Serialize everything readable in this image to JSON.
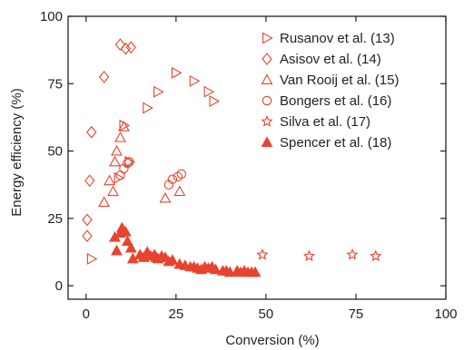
{
  "chart_data": {
    "type": "scatter",
    "xlabel": "Conversion (%)",
    "ylabel": "Energy efficiency (%)",
    "xlim": [
      -5,
      100
    ],
    "ylim": [
      -5,
      100
    ],
    "x_ticks": [
      0,
      25,
      50,
      75,
      100
    ],
    "y_ticks": [
      0,
      25,
      50,
      75,
      100
    ],
    "x_tick_labels": [
      "0",
      "25",
      "50",
      "75",
      "100"
    ],
    "y_tick_labels": [
      "0",
      "25",
      "50",
      "75",
      "100"
    ],
    "grid": false,
    "legend_position": "top-right",
    "color": "#e8432e",
    "series": [
      {
        "name": "Rusanov et al. (13)",
        "marker": "triangle-right",
        "filled": false,
        "points": [
          [
            1.5,
            10
          ],
          [
            9,
            40
          ],
          [
            12,
            46
          ],
          [
            17,
            66
          ],
          [
            20,
            72
          ],
          [
            25,
            79
          ],
          [
            30,
            76
          ],
          [
            34,
            72
          ],
          [
            35.5,
            68.5
          ],
          [
            10.5,
            59.5
          ]
        ]
      },
      {
        "name": "Asisov et al. (14)",
        "marker": "diamond",
        "filled": false,
        "points": [
          [
            0.3,
            24.5
          ],
          [
            0.3,
            18.5
          ],
          [
            1,
            39
          ],
          [
            1.5,
            57
          ],
          [
            5,
            77.5
          ],
          [
            9.5,
            89.5
          ],
          [
            11,
            88
          ],
          [
            12.5,
            88.5
          ]
        ]
      },
      {
        "name": "Van Rooij et al. (15)",
        "marker": "triangle-up",
        "filled": false,
        "points": [
          [
            5,
            31
          ],
          [
            6.5,
            39
          ],
          [
            7.5,
            35
          ],
          [
            8,
            46
          ],
          [
            8.5,
            50
          ],
          [
            9.5,
            55
          ],
          [
            10.5,
            59
          ],
          [
            22,
            32.5
          ],
          [
            26,
            35
          ]
        ]
      },
      {
        "name": "Bongers et al. (16)",
        "marker": "circle",
        "filled": false,
        "points": [
          [
            9.5,
            41
          ],
          [
            10.5,
            43.5
          ],
          [
            11.5,
            45.5
          ],
          [
            12,
            46
          ],
          [
            23,
            37.5
          ],
          [
            24,
            39.5
          ],
          [
            25.5,
            40.5
          ],
          [
            26.5,
            41.5
          ]
        ]
      },
      {
        "name": "Silva et al. (17)",
        "marker": "star",
        "filled": false,
        "points": [
          [
            49,
            11.5
          ],
          [
            62,
            11
          ],
          [
            74,
            11.5
          ],
          [
            80.5,
            11
          ]
        ]
      },
      {
        "name": "Spencer et al. (18)",
        "marker": "triangle-up",
        "filled": true,
        "points": [
          [
            8,
            18
          ],
          [
            8.5,
            13
          ],
          [
            9.5,
            19.5
          ],
          [
            10,
            21.5
          ],
          [
            11,
            20
          ],
          [
            11.5,
            16.5
          ],
          [
            12.5,
            14
          ],
          [
            13,
            10
          ],
          [
            15,
            11.5
          ],
          [
            16,
            10.5
          ],
          [
            17,
            12.5
          ],
          [
            18,
            11
          ],
          [
            19,
            11.5
          ],
          [
            19.5,
            10.5
          ],
          [
            20,
            10
          ],
          [
            21,
            11
          ],
          [
            22,
            10.5
          ],
          [
            23,
            9
          ],
          [
            24,
            9.5
          ],
          [
            26,
            8
          ],
          [
            27.5,
            7.5
          ],
          [
            29,
            7
          ],
          [
            30,
            7
          ],
          [
            31,
            6.5
          ],
          [
            32,
            6
          ],
          [
            33,
            7
          ],
          [
            34,
            6.5
          ],
          [
            35,
            7
          ],
          [
            36,
            6
          ],
          [
            38,
            5.5
          ],
          [
            39,
            5.5
          ],
          [
            40,
            5
          ],
          [
            42,
            5.5
          ],
          [
            43,
            5
          ],
          [
            44,
            5.5
          ],
          [
            45,
            5
          ],
          [
            46,
            5
          ],
          [
            47,
            5
          ]
        ]
      }
    ]
  }
}
